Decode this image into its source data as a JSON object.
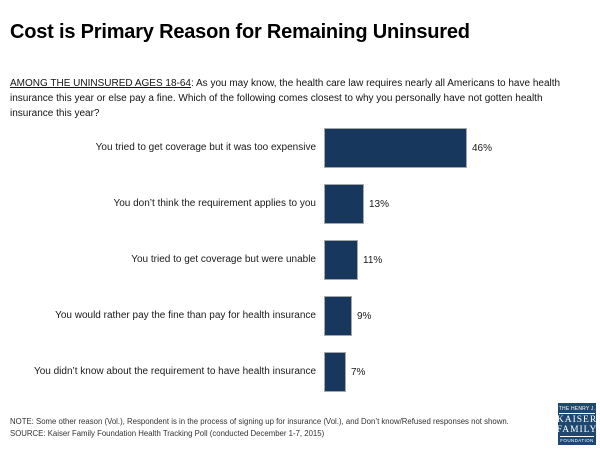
{
  "title": "Cost is Primary Reason for Remaining Uninsured",
  "question": {
    "underlined": "AMONG THE UNINSURED AGES 18-64",
    "rest": ": As you may know, the health care law requires nearly all Americans to have health insurance this year or else pay a fine. Which of the following comes closest to why you personally have not gotten health insurance this year?"
  },
  "chart_data": {
    "type": "bar",
    "orientation": "horizontal",
    "title": "Cost is Primary Reason for Remaining Uninsured",
    "categories": [
      "You tried to get coverage but it was too expensive",
      "You don’t think the requirement applies to you",
      "You tried to get coverage but were unable",
      "You would rather pay the fine than pay for health insurance",
      "You didn’t know about the requirement to have health insurance"
    ],
    "values": [
      46,
      13,
      11,
      9,
      7
    ],
    "value_labels": [
      "46%",
      "13%",
      "11%",
      "9%",
      "7%"
    ],
    "bar_color": "#17375c",
    "xlabel": "",
    "ylabel": "",
    "xlim": [
      0,
      50
    ],
    "grid": false,
    "legend": false,
    "data_labels_position": "outside-end"
  },
  "footer": {
    "note": "NOTE: Some other reason (Vol.), Respondent is in the process of signing up for insurance (Vol.), and Don’t know/Refused responses not shown.",
    "source": "SOURCE: Kaiser Family Foundation Health Tracking Poll (conducted December 1-7, 2015)"
  },
  "logo": {
    "top": "THE HENRY J.",
    "name1": "KAISER",
    "name2": "FAMILY",
    "bottom": "FOUNDATION"
  },
  "colors": {
    "bar": "#17375c",
    "bar_border": "#a6a6a6",
    "logo_bg": "#1e4872",
    "title_text": "#000000",
    "body_text": "#141414"
  }
}
